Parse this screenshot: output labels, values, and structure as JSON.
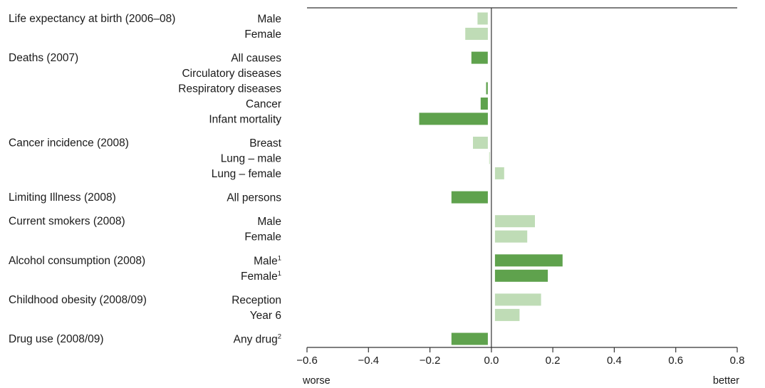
{
  "chart_data": {
    "type": "bar",
    "orientation": "horizontal",
    "xlim": [
      -0.6,
      0.8
    ],
    "xticks": [
      "−0.6",
      "−0.4",
      "−0.2",
      "0.0",
      "0.2",
      "0.4",
      "0.6",
      "0.8"
    ],
    "xtick_values": [
      -0.6,
      -0.4,
      -0.2,
      0.0,
      0.2,
      0.4,
      0.6,
      0.8
    ],
    "left_label": "worse",
    "right_label": "better",
    "colors": {
      "dark": "#5fa24d",
      "light": "#bfdcb6",
      "axis": "#333333"
    },
    "groups": [
      {
        "label": "Life expectancy at birth (2006–08)",
        "items": [
          {
            "label": "Male",
            "sup": "",
            "value": -0.045,
            "shade": "light"
          },
          {
            "label": "Female",
            "sup": "",
            "value": -0.085,
            "shade": "light"
          }
        ]
      },
      {
        "label": "Deaths (2007)",
        "items": [
          {
            "label": "All causes",
            "sup": "",
            "value": -0.065,
            "shade": "dark"
          },
          {
            "label": "Circulatory diseases",
            "sup": "",
            "value": null,
            "shade": "dark"
          },
          {
            "label": "Respiratory diseases",
            "sup": "",
            "value": -0.017,
            "shade": "dark"
          },
          {
            "label": "Cancer",
            "sup": "",
            "value": -0.035,
            "shade": "dark"
          },
          {
            "label": "Infant mortality",
            "sup": "",
            "value": -0.235,
            "shade": "dark"
          }
        ]
      },
      {
        "label": "Cancer incidence (2008)",
        "items": [
          {
            "label": "Breast",
            "sup": "",
            "value": -0.06,
            "shade": "light"
          },
          {
            "label": "Lung – male",
            "sup": "",
            "value": -0.007,
            "shade": "light"
          },
          {
            "label": "Lung – female",
            "sup": "",
            "value": 0.03,
            "shade": "light"
          }
        ]
      },
      {
        "label": "Limiting Illness (2008)",
        "items": [
          {
            "label": "All persons",
            "sup": "",
            "value": -0.13,
            "shade": "dark"
          }
        ]
      },
      {
        "label": "Current smokers (2008)",
        "items": [
          {
            "label": "Male",
            "sup": "",
            "value": 0.13,
            "shade": "light"
          },
          {
            "label": "Female",
            "sup": "",
            "value": 0.105,
            "shade": "light"
          }
        ]
      },
      {
        "label": "Alcohol consumption (2008)",
        "items": [
          {
            "label": "Male",
            "sup": "1",
            "value": 0.22,
            "shade": "dark"
          },
          {
            "label": "Female",
            "sup": "1",
            "value": 0.172,
            "shade": "dark"
          }
        ]
      },
      {
        "label": "Childhood obesity (2008/09)",
        "items": [
          {
            "label": "Reception",
            "sup": "",
            "value": 0.15,
            "shade": "light"
          },
          {
            "label": "Year 6",
            "sup": "",
            "value": 0.08,
            "shade": "light"
          }
        ]
      },
      {
        "label": "Drug use (2008/09)",
        "items": [
          {
            "label": "Any drug",
            "sup": "2",
            "value": -0.13,
            "shade": "dark"
          }
        ]
      }
    ]
  }
}
